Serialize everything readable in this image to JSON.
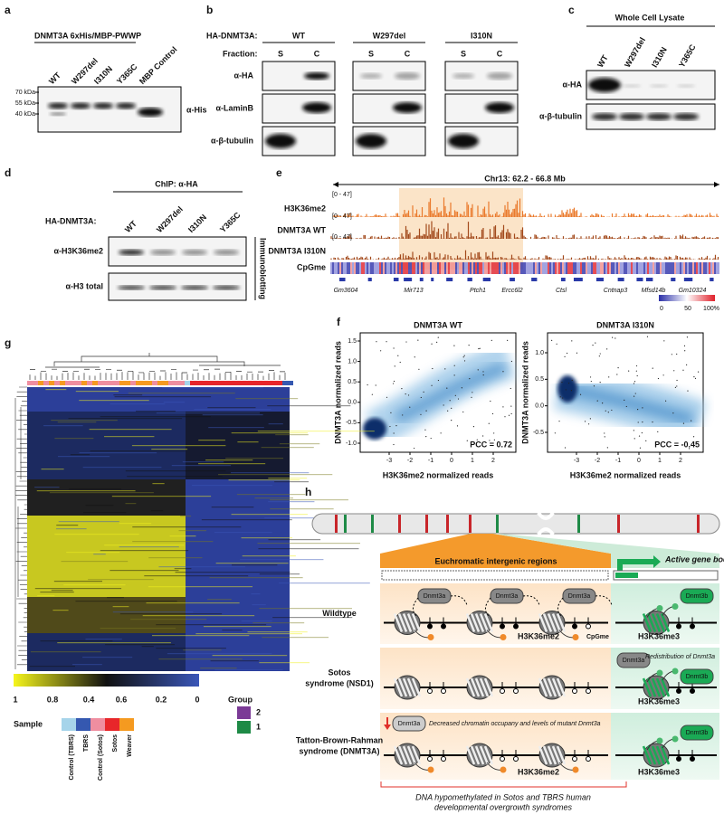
{
  "panels": {
    "a": {
      "label": "a",
      "title": "DNMT3A 6xHis/MBP-PWWP",
      "lanes": [
        "WT",
        "W297del",
        "I310N",
        "Y365C",
        "MBP Control"
      ],
      "markers": [
        "70 kDa",
        "55 kDa",
        "40 kDa"
      ],
      "antibody": "α-His"
    },
    "b": {
      "label": "b",
      "construct_label": "HA-DNMT3A:",
      "fraction_label": "Fraction:",
      "groups": [
        {
          "name": "WT",
          "fractions": [
            "S",
            "C"
          ]
        },
        {
          "name": "W297del",
          "fractions": [
            "S",
            "C"
          ]
        },
        {
          "name": "I310N",
          "fractions": [
            "S",
            "C"
          ]
        }
      ],
      "antibodies": [
        "α-HA",
        "α-LaminB",
        "α-β-tubulin"
      ]
    },
    "c": {
      "label": "c",
      "title": "Whole Cell Lysate",
      "lanes": [
        "WT",
        "W297del",
        "I310N",
        "Y365C"
      ],
      "antibodies": [
        "α-HA",
        "α-β-tubulin"
      ]
    },
    "d": {
      "label": "d",
      "title": "ChIP: α-HA",
      "construct_label": "HA-DNMT3A:",
      "lanes": [
        "WT",
        "W297del",
        "I310N",
        "Y365C"
      ],
      "antibodies": [
        "α-H3K36me2",
        "α-H3 total"
      ],
      "method": "Immunoblotting"
    },
    "e": {
      "label": "e",
      "region": "Chr13: 62.2 - 66.8 Mb",
      "tracks": [
        {
          "name": "H3K36me2",
          "range": "[0 - 47]"
        },
        {
          "name": "DNMT3A WT",
          "range": "[0 - 47]"
        },
        {
          "name": "DNMT3A I310N",
          "range": "[0 - 47]"
        }
      ],
      "methylation_track": "CpGme",
      "genes": [
        "Gm3604",
        "Mir713",
        "Ptch1",
        "Ercc6l2",
        "Ctsl",
        "Cntnap3",
        "Mfsd14b",
        "Gm10324"
      ],
      "colorbar_labels": [
        "0",
        "50",
        "100%"
      ]
    },
    "f": {
      "label": "f",
      "plots": [
        {
          "title": "DNMT3A WT",
          "y_label": "DNMT3A normalized reads",
          "x_label": "H3K36me2 normalized reads",
          "yticks": [
            "1.5",
            "1.0",
            "0.5",
            "0.0",
            "-0.5",
            "-1.0"
          ],
          "xticks": [
            "-3",
            "-2",
            "-1",
            "0",
            "1",
            "2"
          ],
          "pcc": "PCC = 0.72"
        },
        {
          "title": "DNMT3A I310N",
          "y_label": "DNMT3A  normalized reads",
          "x_label": "H3K36me2 normalized reads",
          "yticks": [
            "1.0",
            "0.5",
            "0.0",
            "-0.5"
          ],
          "xticks": [
            "-3",
            "-2",
            "-1",
            "0",
            "1",
            "2"
          ],
          "pcc": "PCC = -0.45"
        }
      ]
    },
    "g": {
      "label": "g",
      "colorbar_labels": [
        "1",
        "0.8",
        "0.4",
        "0.6",
        "0.2",
        "0"
      ],
      "group_title": "Group",
      "groups": [
        "2",
        "1"
      ],
      "sample_title": "Sample",
      "samples": [
        "Control (TBRS)",
        "TBRS",
        "Control (Sotos)",
        "Sotos",
        "Weaver"
      ]
    },
    "h": {
      "label": "h",
      "region_titles": [
        "Euchromatic intergenic regions",
        "Active gene body"
      ],
      "rows": [
        {
          "lines": [
            "Wildtype"
          ],
          "enzymes": [
            "Dnmt3a",
            "Dnmt3a",
            "Dnmt3a",
            "Dnmt3b"
          ],
          "marks": [
            "H3K36me2",
            "CpGme",
            "H3K36me3"
          ]
        },
        {
          "lines": [
            "Sotos",
            "syndrome (NSD1)"
          ],
          "enzymes": [
            "Dnmt3a",
            "Dnmt3b"
          ],
          "note": "Redistribution of Dnmt3a",
          "marks": [
            "H3K36me3"
          ]
        },
        {
          "lines": [
            "Tatton-Brown-Rahman",
            "syndrome (DNMT3A)"
          ],
          "enzymes": [
            "Dnmt3a",
            "Dnmt3b"
          ],
          "note": "Decreased chromatin occupany and levels of mutant Dnmt3a",
          "marks": [
            "H3K36me2",
            "H3K36me3"
          ]
        }
      ],
      "footer": [
        "DNA hypomethylated in Sotos and TBRS human",
        "developmental overgrowth syndromes"
      ]
    }
  }
}
